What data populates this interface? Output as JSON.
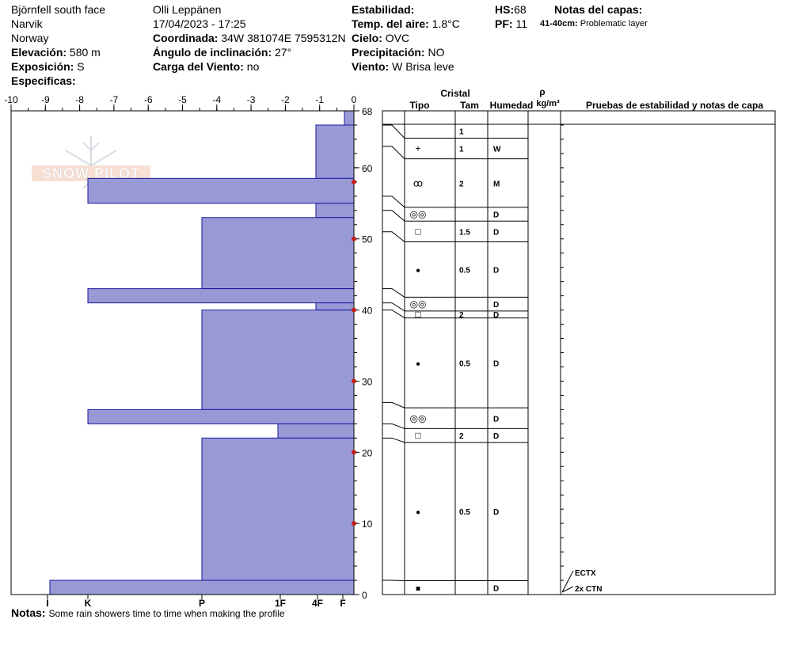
{
  "header": {
    "site": "Björnfell south face",
    "location": "Narvik",
    "country": "Norway",
    "elevation_label": "Elevación:",
    "elevation_value": "580 m",
    "aspect_label": "Exposición:",
    "aspect_value": "S",
    "specifics_label": "Especificas:",
    "observer": "Olli Leppänen",
    "datetime": "17/04/2023 - 17:25",
    "coord_label": "Coordinada:",
    "coord_value": "34W 381074E 7595312N",
    "slope_label": "Ángulo de inclinación:",
    "slope_value": "27°",
    "wind_load_label": "Carga del Viento:",
    "wind_load_value": "no",
    "stability_label": "Estabilidad:",
    "air_temp_label": "Temp. del aire:",
    "air_temp_value": "1.8°C",
    "sky_label": "Cielo:",
    "sky_value": "OVC",
    "precip_label": "Precipitación:",
    "precip_value": "NO",
    "wind_label": "Viento:",
    "wind_value": "W Brisa leve",
    "hs_label": "HS:",
    "hs_value": "68",
    "pf_label": "PF:",
    "pf_value": "11",
    "layer_notes_title": "Notas del capas:",
    "layer_note_range": "41-40cm:",
    "layer_note_text": "Problematic layer"
  },
  "logo_text": "SNOW PILOT",
  "table_headers": {
    "crystal": "Cristal",
    "type": "Tipo",
    "size": "Tam",
    "moisture": "Humedad",
    "density_symbol": "ρ",
    "density_unit": "kg/m³",
    "tests": "Pruebas de estabilidad y notas de capa"
  },
  "notes_label": "Notas:",
  "notes_text": "Some rain showers time to time when making the profile",
  "colors": {
    "hardness_fill": "#9999d6",
    "hardness_stroke": "#1a1aa0",
    "temp_marker": "#c0201c"
  },
  "chart_data": {
    "type": "bar",
    "orientation": "horizontal",
    "title": "",
    "x_axis_top": {
      "ticks": [
        "-10",
        "-9",
        "-8",
        "-7",
        "-6",
        "-5",
        "-4",
        "-3",
        "-2",
        "-1",
        "0"
      ],
      "range": [
        -10,
        0
      ]
    },
    "x_axis_bottom": {
      "ticks": [
        "I",
        "K",
        "P",
        "1F",
        "4F",
        "F"
      ]
    },
    "y_axis": {
      "ticks": [
        "0",
        "10",
        "20",
        "30",
        "40",
        "50",
        "60",
        "68"
      ],
      "range": [
        0,
        68
      ]
    },
    "hardness_scale": [
      "F",
      "4F",
      "1F",
      "P",
      "K",
      "I"
    ],
    "hardness_layers": [
      {
        "top": 68,
        "bottom": 66,
        "hardness": "F"
      },
      {
        "top": 66,
        "bottom": 58.5,
        "hardness": "4F"
      },
      {
        "top": 58.5,
        "bottom": 55,
        "hardness": "K"
      },
      {
        "top": 55,
        "bottom": 53,
        "hardness": "4F"
      },
      {
        "top": 53,
        "bottom": 43,
        "hardness": "P"
      },
      {
        "top": 43,
        "bottom": 41,
        "hardness": "K"
      },
      {
        "top": 41,
        "bottom": 40,
        "hardness": "4F"
      },
      {
        "top": 40,
        "bottom": 26,
        "hardness": "P"
      },
      {
        "top": 26,
        "bottom": 24,
        "hardness": "K"
      },
      {
        "top": 24,
        "bottom": 22,
        "hardness": "1F"
      },
      {
        "top": 22,
        "bottom": 2,
        "hardness": "P"
      },
      {
        "top": 2,
        "bottom": 0,
        "hardness": "I"
      }
    ],
    "temperature_profile": [
      {
        "depth": 58,
        "temp": 0
      },
      {
        "depth": 50,
        "temp": 0
      },
      {
        "depth": 40,
        "temp": 0
      },
      {
        "depth": 30,
        "temp": 0
      },
      {
        "depth": 20,
        "temp": 0
      },
      {
        "depth": 10,
        "temp": 0
      }
    ],
    "crystal_layers": [
      {
        "top": 68,
        "bottom": 66,
        "type": "",
        "size": "1",
        "moisture": ""
      },
      {
        "top": 66,
        "bottom": 63,
        "type": "+",
        "size": "1",
        "moisture": "W"
      },
      {
        "top": 63,
        "bottom": 56,
        "type": "melt-freeze",
        "size": "2",
        "moisture": "M"
      },
      {
        "top": 56,
        "bottom": 54,
        "type": "melt-forms",
        "size": "",
        "moisture": "D"
      },
      {
        "top": 54,
        "bottom": 51,
        "type": "□",
        "size": "1.5",
        "moisture": "D"
      },
      {
        "top": 51,
        "bottom": 43,
        "type": "●",
        "size": "0.5",
        "moisture": "D"
      },
      {
        "top": 43,
        "bottom": 41,
        "type": "melt-forms",
        "size": "",
        "moisture": "D"
      },
      {
        "top": 41,
        "bottom": 40,
        "type": "□",
        "size": "2",
        "moisture": "D"
      },
      {
        "top": 40,
        "bottom": 27,
        "type": "●",
        "size": "0.5",
        "moisture": "D"
      },
      {
        "top": 27,
        "bottom": 24,
        "type": "melt-forms",
        "size": "",
        "moisture": "D"
      },
      {
        "top": 24,
        "bottom": 22,
        "type": "□",
        "size": "2",
        "moisture": "D"
      },
      {
        "top": 22,
        "bottom": 2,
        "type": "●",
        "size": "0.5",
        "moisture": "D"
      },
      {
        "top": 2,
        "bottom": 0,
        "type": "■",
        "size": "",
        "moisture": "D"
      }
    ],
    "stability_tests": [
      {
        "label": "ECTX",
        "depth": 2
      },
      {
        "label": "2x CTN",
        "depth": 0
      }
    ]
  }
}
